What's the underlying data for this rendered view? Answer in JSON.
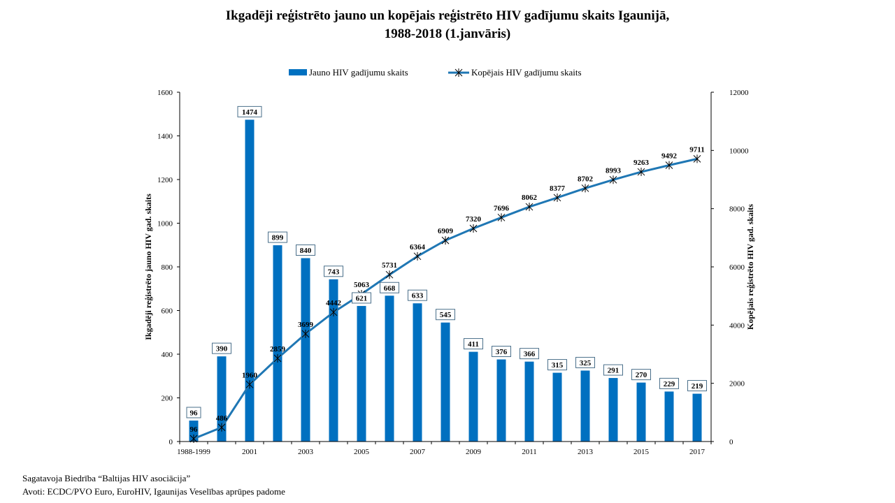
{
  "chart_data": {
    "type": "bar+line",
    "title_line1": "Ikgadēji reģistrēto jauno un kopējais reģistrēto HIV gadījumu skaits Igaunijā,",
    "title_line2": "1988-2018 (1.janvāris)",
    "categories": [
      "1988-1999",
      "2000",
      "2001",
      "2002",
      "2003",
      "2004",
      "2005",
      "2006",
      "2007",
      "2008",
      "2009",
      "2010",
      "2011",
      "2012",
      "2013",
      "2014",
      "2015",
      "2016",
      "2017"
    ],
    "x_tick_labels": [
      "1988-1999",
      "",
      "2001",
      "",
      "2003",
      "",
      "2005",
      "",
      "2007",
      "",
      "2009",
      "",
      "2011",
      "",
      "2013",
      "",
      "2015",
      "",
      "2017"
    ],
    "series": [
      {
        "name": "Jauno HIV gadījumu skaits",
        "type": "bar",
        "axis": "left",
        "color": "#0070c0",
        "values": [
          96,
          390,
          1474,
          899,
          840,
          743,
          621,
          668,
          633,
          545,
          411,
          376,
          366,
          315,
          325,
          291,
          270,
          229,
          219
        ]
      },
      {
        "name": "Kopējais HIV gadījumu skaits",
        "type": "line",
        "axis": "right",
        "color": "#1f77b4",
        "marker": "asterisk",
        "values": [
          96,
          486,
          1960,
          2859,
          3699,
          4442,
          5063,
          5731,
          6364,
          6909,
          7320,
          7696,
          8062,
          8377,
          8702,
          8993,
          9263,
          9492,
          9711
        ]
      }
    ],
    "ylabel_left": "Ikgadēji reģistrēto jauno HIV gad. skaits",
    "ylabel_right": "Kopējais reģistrēto HIV gad. skaits",
    "ylim_left": [
      0,
      1600
    ],
    "ylim_right": [
      0,
      12000
    ],
    "yticks_left": [
      0,
      200,
      400,
      600,
      800,
      1000,
      1200,
      1400,
      1600
    ],
    "yticks_right": [
      0,
      2000,
      4000,
      6000,
      8000,
      10000,
      12000
    ],
    "grid": false,
    "legend_position": "top"
  },
  "footer": {
    "line1": "Sagatavoja Biedrība “Baltijas HIV asociācija”",
    "line2": "Avoti: ECDC/PVO Euro, EuroHIV, Igaunijas Veselības aprūpes padome"
  }
}
